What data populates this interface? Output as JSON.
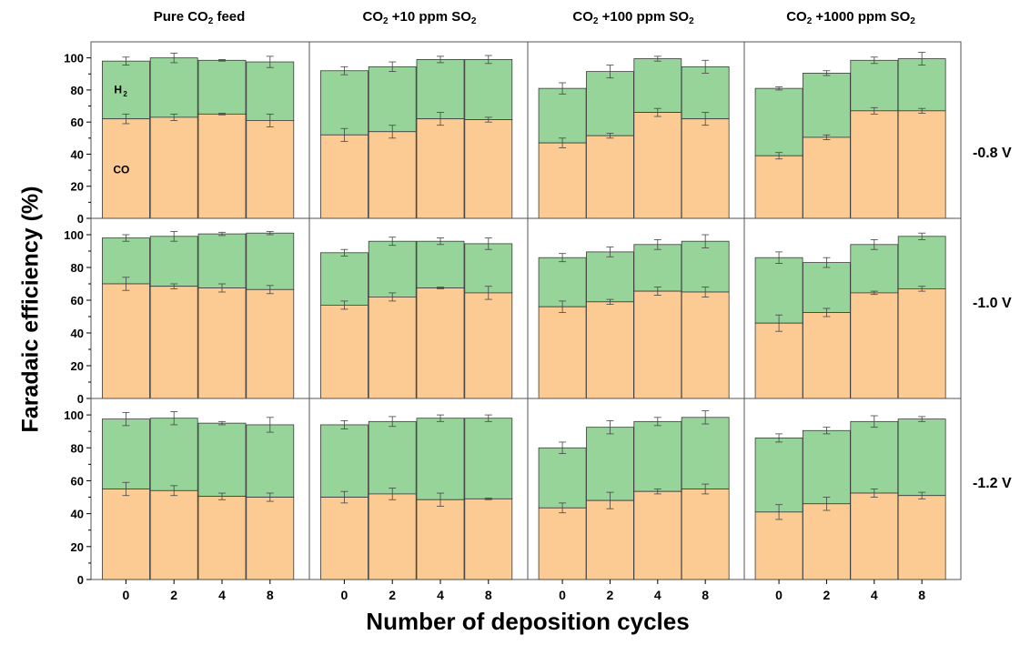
{
  "figure": {
    "ylabel": "Faradaic efficiency (%)",
    "xlabel": "Number of deposition cycles",
    "columns": [
      {
        "pre": "Pure CO",
        "sub": "2",
        "post": " feed",
        "sub2": "",
        "post2": ""
      },
      {
        "pre": "CO",
        "sub": "2",
        "post": " +10 ppm SO",
        "sub2": "2",
        "post2": ""
      },
      {
        "pre": "CO",
        "sub": "2",
        "post": " +100 ppm SO",
        "sub2": "2",
        "post2": ""
      },
      {
        "pre": "CO",
        "sub": "2",
        "post": " +1000 ppm SO",
        "sub2": "2",
        "post2": ""
      }
    ],
    "rows": [
      "-0.8 V",
      "-1.0 V",
      "-1.2 V"
    ],
    "annotations": {
      "h2": "H",
      "h2_sub": "2",
      "co": "CO"
    }
  },
  "colors": {
    "co": "#FCCB93",
    "h2": "#97D49A",
    "edge": "#3a3a3a"
  },
  "chart_data": {
    "type": "bar",
    "stacked": true,
    "categories": [
      "0",
      "2",
      "4",
      "8"
    ],
    "yticks": [
      0,
      20,
      40,
      60,
      80,
      100
    ],
    "ylim": [
      0,
      110
    ],
    "panels": [
      {
        "row": "-0.8 V",
        "col": "Pure CO2 feed",
        "co": [
          62,
          63,
          65,
          61
        ],
        "co_err": [
          3,
          2,
          0.5,
          4
        ],
        "total": [
          98,
          100,
          98.5,
          97.5
        ],
        "total_err": [
          2.5,
          3,
          0.5,
          3.5
        ]
      },
      {
        "row": "-0.8 V",
        "col": "CO2 +10 ppm SO2",
        "co": [
          52,
          54,
          62,
          61.5
        ],
        "co_err": [
          4,
          4,
          4,
          1.5
        ],
        "total": [
          92,
          94.5,
          99,
          99
        ],
        "total_err": [
          2.5,
          3,
          2,
          2.5
        ]
      },
      {
        "row": "-0.8 V",
        "col": "CO2 +100 ppm SO2",
        "co": [
          47,
          51.5,
          66,
          62
        ],
        "co_err": [
          3,
          1.5,
          2.5,
          4
        ],
        "total": [
          81,
          91.5,
          99.5,
          94.5
        ],
        "total_err": [
          3.5,
          4,
          1.5,
          4
        ]
      },
      {
        "row": "-0.8 V",
        "col": "CO2 +1000 ppm SO2",
        "co": [
          39,
          50.5,
          67,
          67
        ],
        "co_err": [
          2,
          1.5,
          2,
          1.5
        ],
        "total": [
          81,
          90.5,
          98.5,
          99.5
        ],
        "total_err": [
          1,
          1.5,
          2,
          4
        ]
      },
      {
        "row": "-1.0 V",
        "col": "Pure CO2 feed",
        "co": [
          70,
          68.5,
          67.5,
          66.5
        ],
        "co_err": [
          4,
          1.5,
          2.5,
          2.5
        ],
        "total": [
          98,
          99,
          100.5,
          101
        ],
        "total_err": [
          2,
          3,
          1,
          1
        ]
      },
      {
        "row": "-1.0 V",
        "col": "CO2 +10 ppm SO2",
        "co": [
          57,
          62,
          67.5,
          64.5
        ],
        "co_err": [
          2.5,
          2.5,
          0.5,
          4
        ],
        "total": [
          89,
          96,
          96,
          94.5
        ],
        "total_err": [
          2,
          2.5,
          2,
          3.5
        ]
      },
      {
        "row": "-1.0 V",
        "col": "CO2 +100 ppm SO2",
        "co": [
          56,
          59,
          65.5,
          65
        ],
        "co_err": [
          3.5,
          1.5,
          2.5,
          3
        ],
        "total": [
          86,
          89.5,
          94,
          96
        ],
        "total_err": [
          2.5,
          3,
          3,
          4
        ]
      },
      {
        "row": "-1.0 V",
        "col": "CO2 +1000 ppm SO2",
        "co": [
          46,
          52.5,
          64.5,
          67
        ],
        "co_err": [
          5,
          2.5,
          1,
          1.5
        ],
        "total": [
          86,
          83,
          94,
          99
        ],
        "total_err": [
          3.5,
          3,
          3,
          2
        ]
      },
      {
        "row": "-1.2 V",
        "col": "Pure CO2 feed",
        "co": [
          55,
          54,
          50.5,
          50
        ],
        "co_err": [
          4,
          3,
          2,
          2.5
        ],
        "total": [
          97.5,
          98,
          95,
          94
        ],
        "total_err": [
          4,
          4,
          1,
          4.5
        ]
      },
      {
        "row": "-1.2 V",
        "col": "CO2 +10 ppm SO2",
        "co": [
          50,
          52,
          48.5,
          49
        ],
        "co_err": [
          3.5,
          3.5,
          4,
          0.5
        ],
        "total": [
          94,
          96,
          98,
          98
        ],
        "total_err": [
          2.5,
          3,
          2,
          2
        ]
      },
      {
        "row": "-1.2 V",
        "col": "CO2 +100 ppm SO2",
        "co": [
          43.5,
          48,
          53.5,
          55
        ],
        "co_err": [
          3,
          5,
          1.5,
          3
        ],
        "total": [
          80,
          92.5,
          96,
          98.5
        ],
        "total_err": [
          3.5,
          4,
          2.5,
          4
        ]
      },
      {
        "row": "-1.2 V",
        "col": "CO2 +1000 ppm SO2",
        "co": [
          41,
          46,
          52.5,
          51
        ],
        "co_err": [
          4.5,
          4,
          2.5,
          2
        ],
        "total": [
          86,
          90.5,
          96,
          97.5
        ],
        "total_err": [
          2.5,
          2,
          3.5,
          1.5
        ]
      }
    ]
  }
}
